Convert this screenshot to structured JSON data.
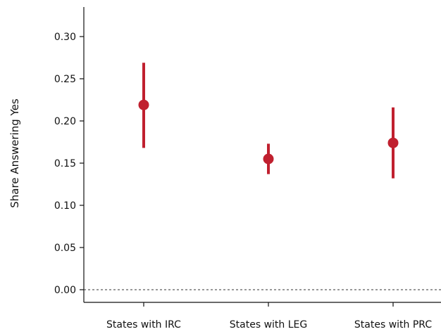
{
  "chart_data": {
    "type": "scatter",
    "title": "",
    "xlabel": "",
    "ylabel": "Share Answering Yes",
    "categories": [
      "States with IRC",
      "States with LEG",
      "States with PRC"
    ],
    "points": [
      {
        "category": "States with IRC",
        "y": 0.219,
        "lower": 0.168,
        "upper": 0.269
      },
      {
        "category": "States with LEG",
        "y": 0.155,
        "lower": 0.137,
        "upper": 0.173
      },
      {
        "category": "States with PRC",
        "y": 0.174,
        "lower": 0.132,
        "upper": 0.216
      }
    ],
    "yticks": [
      "0.00",
      "0.05",
      "0.10",
      "0.15",
      "0.20",
      "0.25",
      "0.30"
    ],
    "ytick_values": [
      0,
      0.05,
      0.1,
      0.15,
      0.2,
      0.25,
      0.3
    ],
    "ylim": [
      -0.015,
      0.335
    ],
    "reference_line": 0,
    "grid": false,
    "legend": "none",
    "colors": {
      "marker": "#c0202f",
      "axis": "#111111"
    }
  }
}
